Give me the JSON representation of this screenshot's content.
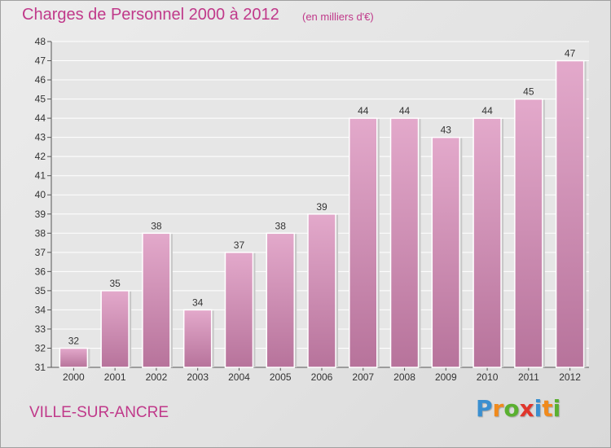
{
  "header": {
    "title": "Charges de Personnel 2000 à 2012",
    "subtitle": "(en milliers d'€)"
  },
  "footer": {
    "city": "VILLE-SUR-ANCRE",
    "logo_text": "Proxiti"
  },
  "colors": {
    "bar": "#d793b9",
    "accent": "#c0398a"
  },
  "chart_data": {
    "type": "bar",
    "title": "Charges de Personnel 2000 à 2012",
    "subtitle": "(en milliers d'€)",
    "xlabel": "",
    "ylabel": "",
    "categories": [
      "2000",
      "2001",
      "2002",
      "2003",
      "2004",
      "2005",
      "2006",
      "2007",
      "2008",
      "2009",
      "2010",
      "2011",
      "2012"
    ],
    "values": [
      32,
      35,
      38,
      34,
      37,
      38,
      39,
      44,
      44,
      43,
      44,
      45,
      47
    ],
    "ylim": [
      31,
      48
    ],
    "yticks": [
      31,
      32,
      33,
      34,
      35,
      36,
      37,
      38,
      39,
      40,
      41,
      42,
      43,
      44,
      45,
      46,
      47,
      48
    ],
    "grid": true,
    "data_labels": true
  }
}
